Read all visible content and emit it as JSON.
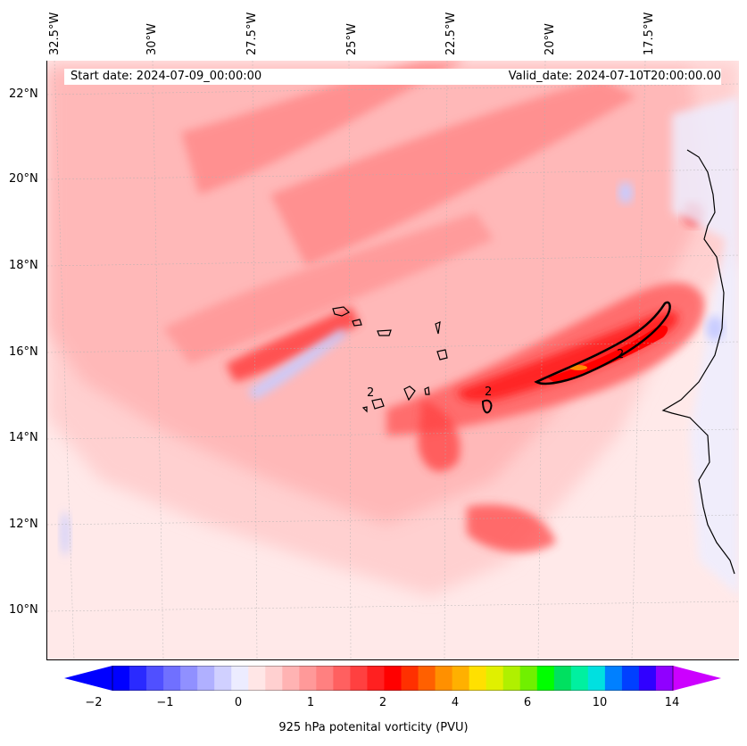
{
  "header": {
    "start_date": "Start date: 2024-07-09_00:00:00",
    "valid_date": "Valid_date: 2024-07-10T20:00:00.00"
  },
  "map": {
    "longitude_labels": [
      "32.5°W",
      "30°W",
      "27.5°W",
      "25°W",
      "22.5°W",
      "20°W",
      "17.5°W"
    ],
    "latitude_labels": [
      "22°N",
      "20°N",
      "18°N",
      "16°N",
      "14°N",
      "12°N",
      "10°N"
    ],
    "contour_labels": [
      "2",
      "2",
      "2"
    ],
    "colors": {
      "background": "#ffe9e9",
      "pale": "#ffd0d0",
      "light": "#ffb0b0",
      "mid": "#ff8080",
      "strong": "#ff4040",
      "max": "#ff0000",
      "orange": "#ff8a00",
      "negative_light": "#eeeeff",
      "negative": "#c8ccff"
    }
  },
  "colorbar": {
    "label": "925 hPa potenital vorticity (PVU)",
    "ticks": [
      "−2",
      "−1",
      "0",
      "1",
      "2",
      "4",
      "6",
      "10",
      "14"
    ],
    "colors": [
      "#0000ff",
      "#2a2aff",
      "#5050ff",
      "#7070ff",
      "#9090ff",
      "#b0b0ff",
      "#d0d0ff",
      "#ececff",
      "#ffe6e6",
      "#ffd0d0",
      "#ffb3b3",
      "#ff9999",
      "#ff8080",
      "#ff6060",
      "#ff4040",
      "#ff2020",
      "#ff0000",
      "#ff3000",
      "#ff6000",
      "#ff9000",
      "#ffb000",
      "#ffe000",
      "#e0f000",
      "#b0f000",
      "#70f000",
      "#00ff00",
      "#00e060",
      "#00f0a0",
      "#00e0e0",
      "#0080ff",
      "#0040ff",
      "#3000ff",
      "#9000ff"
    ],
    "extend_colors": {
      "min": "#0000ff",
      "max": "#cc00ff"
    }
  }
}
